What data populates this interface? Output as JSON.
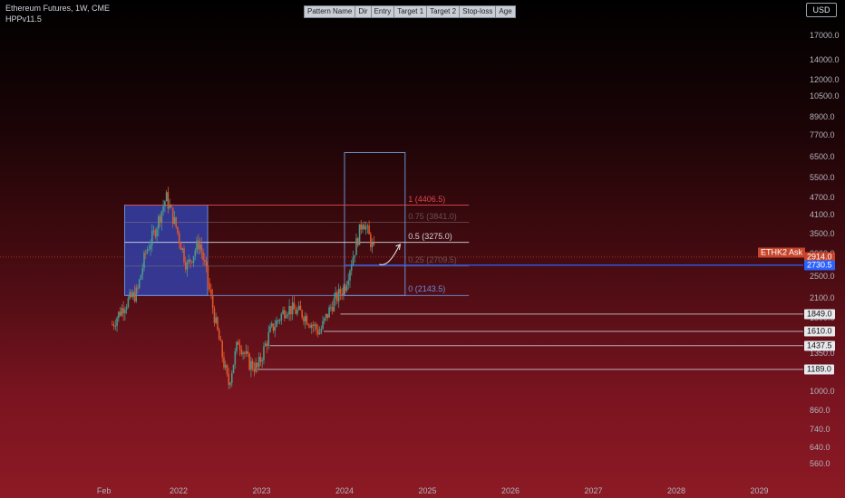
{
  "header": {
    "title": "Ethereum Futures, 1W, CME",
    "indicator": "HPPv11.5"
  },
  "pattern_table": {
    "columns": [
      "Pattern Name",
      "Dir",
      "Entry",
      "Target 1",
      "Target 2",
      "Stop-loss",
      "Age"
    ]
  },
  "currency": "USD",
  "colors": {
    "up": "#4a9a8f",
    "down": "#e0572a",
    "fib_top": "#e0474c",
    "fib_mid": "#d1d4dc",
    "fib_faded": "#8a7f86",
    "fib_bottom": "#6d8ad8",
    "box_fill": "#3340a8",
    "box_stroke": "#6b8fd0",
    "support": "#c9ccd3",
    "last_price": "#c8452b",
    "blue_level": "#2962ff"
  },
  "chart_data": {
    "type": "candlestick",
    "title": "Ethereum Futures, 1W, CME",
    "y_scale": "log",
    "yticks": [
      "17000.0",
      "14000.0",
      "12000.0",
      "10500.0",
      "8900.0",
      "7700.0",
      "6500.0",
      "5500.0",
      "4700.0",
      "4100.0",
      "3500.0",
      "3000.0",
      "2500.0",
      "2100.0",
      "1800.0",
      "1350.0",
      "1000.0",
      "860.0",
      "740.0",
      "640.0",
      "560.0"
    ],
    "xticks": [
      "Feb",
      "2022",
      "2023",
      "2024",
      "2025",
      "2026",
      "2027",
      "2028",
      "2029"
    ],
    "fib_levels": [
      {
        "ratio": "1",
        "price": 4406.5,
        "label": "1 (4406.5)"
      },
      {
        "ratio": "0.75",
        "price": 3841.0,
        "label": "0.75 (3841.0)"
      },
      {
        "ratio": "0.5",
        "price": 3275.0,
        "label": "0.5 (3275.0)"
      },
      {
        "ratio": "0.25",
        "price": 2709.5,
        "label": "0.25 (2709.5)"
      },
      {
        "ratio": "0",
        "price": 2143.5,
        "label": "0 (2143.5)"
      }
    ],
    "price_tags": [
      {
        "label": "2914.0",
        "price": 2914.0,
        "kind": "last"
      },
      {
        "label": "2730.5",
        "price": 2730.5,
        "kind": "blue"
      },
      {
        "label": "1849.0",
        "price": 1849.0,
        "kind": "support"
      },
      {
        "label": "1610.0",
        "price": 1610.0,
        "kind": "support"
      },
      {
        "label": "1437.5",
        "price": 1437.5,
        "kind": "support"
      },
      {
        "label": "1189.0",
        "price": 1189.0,
        "kind": "support"
      }
    ],
    "ask_label": "ETHK2 Ask",
    "anchors": [
      {
        "year": 2021.2,
        "price": 1700
      },
      {
        "year": 2021.35,
        "price": 2000
      },
      {
        "year": 2021.5,
        "price": 2200
      },
      {
        "year": 2021.6,
        "price": 3000
      },
      {
        "year": 2021.7,
        "price": 3500
      },
      {
        "year": 2021.85,
        "price": 4700
      },
      {
        "year": 2021.97,
        "price": 3700
      },
      {
        "year": 2022.1,
        "price": 2700
      },
      {
        "year": 2022.25,
        "price": 3300
      },
      {
        "year": 2022.33,
        "price": 2600
      },
      {
        "year": 2022.45,
        "price": 1700
      },
      {
        "year": 2022.6,
        "price": 1050
      },
      {
        "year": 2022.72,
        "price": 1500
      },
      {
        "year": 2022.85,
        "price": 1250
      },
      {
        "year": 2022.95,
        "price": 1200
      },
      {
        "year": 2023.1,
        "price": 1600
      },
      {
        "year": 2023.3,
        "price": 1950
      },
      {
        "year": 2023.5,
        "price": 1850
      },
      {
        "year": 2023.7,
        "price": 1600
      },
      {
        "year": 2023.85,
        "price": 2000
      },
      {
        "year": 2024.0,
        "price": 2300
      },
      {
        "year": 2024.15,
        "price": 3300
      },
      {
        "year": 2024.22,
        "price": 3950
      },
      {
        "year": 2024.3,
        "price": 3400
      },
      {
        "year": 2024.37,
        "price": 2950
      }
    ]
  }
}
